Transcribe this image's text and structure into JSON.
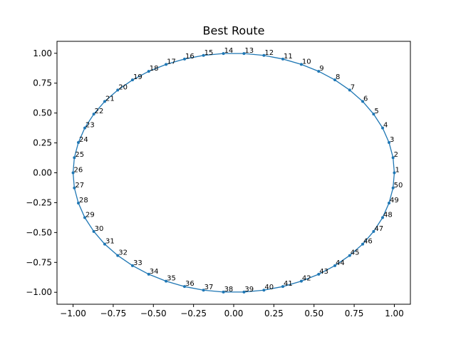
{
  "chart_data": {
    "type": "line",
    "title": "Best Route",
    "xlabel": "",
    "ylabel": "",
    "xlim": [
      -1.1,
      1.1
    ],
    "ylim": [
      -1.1,
      1.1
    ],
    "xticks": [
      -1.0,
      -0.75,
      -0.5,
      -0.25,
      0.0,
      0.25,
      0.5,
      0.75,
      1.0
    ],
    "xtick_labels": [
      "−1.00",
      "−0.75",
      "−0.50",
      "−0.25",
      "0.00",
      "0.25",
      "0.50",
      "0.75",
      "1.00"
    ],
    "yticks": [
      -1.0,
      -0.75,
      -0.5,
      -0.25,
      0.0,
      0.25,
      0.5,
      0.75,
      1.0
    ],
    "ytick_labels": [
      "−1.00",
      "−0.75",
      "−0.50",
      "−0.25",
      "0.00",
      "0.25",
      "0.50",
      "0.75",
      "1.00"
    ],
    "grid": false,
    "closed_loop": true,
    "line_color": "#1f77b4",
    "points": [
      {
        "label": "1",
        "x": 1.0,
        "y": 0.0
      },
      {
        "label": "2",
        "x": 0.992,
        "y": 0.127
      },
      {
        "label": "3",
        "x": 0.967,
        "y": 0.253
      },
      {
        "label": "4",
        "x": 0.927,
        "y": 0.375
      },
      {
        "label": "5",
        "x": 0.871,
        "y": 0.491
      },
      {
        "label": "6",
        "x": 0.803,
        "y": 0.597
      },
      {
        "label": "7",
        "x": 0.722,
        "y": 0.692
      },
      {
        "label": "8",
        "x": 0.63,
        "y": 0.777
      },
      {
        "label": "9",
        "x": 0.529,
        "y": 0.849
      },
      {
        "label": "10",
        "x": 0.421,
        "y": 0.907
      },
      {
        "label": "11",
        "x": 0.306,
        "y": 0.952
      },
      {
        "label": "12",
        "x": 0.188,
        "y": 0.982
      },
      {
        "label": "13",
        "x": 0.064,
        "y": 0.998
      },
      {
        "label": "14",
        "x": -0.064,
        "y": 0.998
      },
      {
        "label": "15",
        "x": -0.188,
        "y": 0.982
      },
      {
        "label": "16",
        "x": -0.306,
        "y": 0.952
      },
      {
        "label": "17",
        "x": -0.421,
        "y": 0.907
      },
      {
        "label": "18",
        "x": -0.529,
        "y": 0.849
      },
      {
        "label": "19",
        "x": -0.63,
        "y": 0.777
      },
      {
        "label": "20",
        "x": -0.722,
        "y": 0.692
      },
      {
        "label": "21",
        "x": -0.803,
        "y": 0.597
      },
      {
        "label": "22",
        "x": -0.871,
        "y": 0.491
      },
      {
        "label": "23",
        "x": -0.927,
        "y": 0.375
      },
      {
        "label": "24",
        "x": -0.967,
        "y": 0.253
      },
      {
        "label": "25",
        "x": -0.992,
        "y": 0.127
      },
      {
        "label": "26",
        "x": -1.0,
        "y": 0.0
      },
      {
        "label": "27",
        "x": -0.992,
        "y": -0.127
      },
      {
        "label": "28",
        "x": -0.967,
        "y": -0.253
      },
      {
        "label": "29",
        "x": -0.927,
        "y": -0.375
      },
      {
        "label": "30",
        "x": -0.871,
        "y": -0.491
      },
      {
        "label": "31",
        "x": -0.803,
        "y": -0.597
      },
      {
        "label": "32",
        "x": -0.722,
        "y": -0.692
      },
      {
        "label": "33",
        "x": -0.63,
        "y": -0.777
      },
      {
        "label": "34",
        "x": -0.529,
        "y": -0.849
      },
      {
        "label": "35",
        "x": -0.421,
        "y": -0.907
      },
      {
        "label": "36",
        "x": -0.306,
        "y": -0.952
      },
      {
        "label": "37",
        "x": -0.188,
        "y": -0.982
      },
      {
        "label": "38",
        "x": -0.064,
        "y": -0.998
      },
      {
        "label": "39",
        "x": 0.064,
        "y": -0.998
      },
      {
        "label": "40",
        "x": 0.188,
        "y": -0.982
      },
      {
        "label": "41",
        "x": 0.306,
        "y": -0.952
      },
      {
        "label": "42",
        "x": 0.421,
        "y": -0.907
      },
      {
        "label": "43",
        "x": 0.529,
        "y": -0.849
      },
      {
        "label": "44",
        "x": 0.63,
        "y": -0.777
      },
      {
        "label": "45",
        "x": 0.722,
        "y": -0.692
      },
      {
        "label": "46",
        "x": 0.803,
        "y": -0.597
      },
      {
        "label": "47",
        "x": 0.871,
        "y": -0.491
      },
      {
        "label": "48",
        "x": 0.927,
        "y": -0.375
      },
      {
        "label": "49",
        "x": 0.967,
        "y": -0.253
      },
      {
        "label": "50",
        "x": 0.992,
        "y": -0.127
      }
    ]
  }
}
